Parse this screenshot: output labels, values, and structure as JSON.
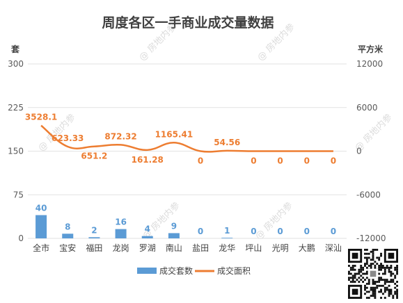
{
  "chart_data": {
    "type": "bar+line",
    "title": "周度各区一手商业成交量数据",
    "y_left_unit": "套",
    "y_right_unit": "平方米",
    "y_left_ticks": [
      "300",
      "225",
      "150",
      "75",
      "0"
    ],
    "y_right_ticks": [
      "12000",
      "6000",
      "0",
      "-6000",
      "-12000"
    ],
    "y_left_range": [
      0,
      300
    ],
    "y_right_range": [
      -12000,
      12000
    ],
    "categories": [
      "全市",
      "宝安",
      "福田",
      "龙岗",
      "罗湖",
      "南山",
      "盐田",
      "龙华",
      "坪山",
      "光明",
      "大鹏",
      "深汕"
    ],
    "series": [
      {
        "name": "成交套数",
        "type": "bar",
        "axis": "left",
        "color": "#5b9bd5",
        "values": [
          40,
          8,
          2,
          16,
          4,
          9,
          0,
          1,
          0,
          0,
          0,
          0
        ],
        "labels": [
          "40",
          "8",
          "2",
          "16",
          "4",
          "9",
          "0",
          "1",
          "0",
          "0",
          "0",
          "0"
        ]
      },
      {
        "name": "成交面积",
        "type": "line",
        "axis": "right",
        "color": "#ed7d31",
        "values": [
          3528.1,
          623.33,
          651.2,
          872.32,
          161.28,
          1165.41,
          0,
          54.56,
          0,
          0,
          0,
          0
        ],
        "labels": [
          "3528.1",
          "623.33",
          "651.2",
          "872.32",
          "161.28",
          "1165.41",
          "0",
          "54.56",
          "0",
          "0",
          "0",
          "0"
        ]
      }
    ],
    "grid": true,
    "legend_position": "bottom"
  },
  "watermark_text": "@ 房地内参"
}
